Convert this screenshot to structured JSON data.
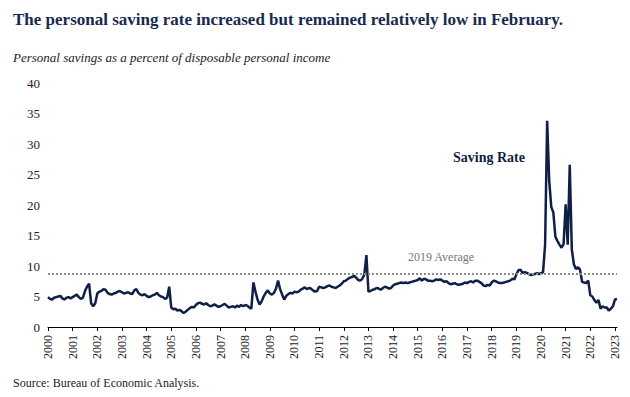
{
  "chart_data": {
    "type": "line",
    "title": "The personal saving rate increased but remained relatively low in February.",
    "subtitle": "Personal savings as a percent of disposable personal income",
    "source": "Source: Bureau of Economic Analysis.",
    "categories": [
      "2000",
      null,
      null,
      null,
      null,
      null,
      null,
      null,
      null,
      null,
      null,
      null,
      "2001",
      null,
      null,
      null,
      null,
      null,
      null,
      null,
      null,
      null,
      null,
      null,
      "2002",
      null,
      null,
      null,
      null,
      null,
      null,
      null,
      null,
      null,
      null,
      null,
      "2003",
      null,
      null,
      null,
      null,
      null,
      null,
      null,
      null,
      null,
      null,
      null,
      "2004",
      null,
      null,
      null,
      null,
      null,
      null,
      null,
      null,
      null,
      null,
      null,
      "2005",
      null,
      null,
      null,
      null,
      null,
      null,
      null,
      null,
      null,
      null,
      null,
      "2006",
      null,
      null,
      null,
      null,
      null,
      null,
      null,
      null,
      null,
      null,
      null,
      "2007",
      null,
      null,
      null,
      null,
      null,
      null,
      null,
      null,
      null,
      null,
      null,
      "2008",
      null,
      null,
      null,
      null,
      null,
      null,
      null,
      null,
      null,
      null,
      null,
      "2009",
      null,
      null,
      null,
      null,
      null,
      null,
      null,
      null,
      null,
      null,
      null,
      "2010",
      null,
      null,
      null,
      null,
      null,
      null,
      null,
      null,
      null,
      null,
      null,
      "2011",
      null,
      null,
      null,
      null,
      null,
      null,
      null,
      null,
      null,
      null,
      null,
      "2012",
      null,
      null,
      null,
      null,
      null,
      null,
      null,
      null,
      null,
      null,
      null,
      "2013",
      null,
      null,
      null,
      null,
      null,
      null,
      null,
      null,
      null,
      null,
      null,
      "2014",
      null,
      null,
      null,
      null,
      null,
      null,
      null,
      null,
      null,
      null,
      null,
      "2015",
      null,
      null,
      null,
      null,
      null,
      null,
      null,
      null,
      null,
      null,
      null,
      "2016",
      null,
      null,
      null,
      null,
      null,
      null,
      null,
      null,
      null,
      null,
      null,
      "2017",
      null,
      null,
      null,
      null,
      null,
      null,
      null,
      null,
      null,
      null,
      null,
      "2018",
      null,
      null,
      null,
      null,
      null,
      null,
      null,
      null,
      null,
      null,
      null,
      "2019",
      null,
      null,
      null,
      null,
      null,
      null,
      null,
      null,
      null,
      null,
      null,
      "2020",
      null,
      null,
      null,
      null,
      null,
      null,
      null,
      null,
      null,
      null,
      null,
      "2021",
      null,
      null,
      null,
      null,
      null,
      null,
      null,
      null,
      null,
      null,
      null,
      "2022",
      null,
      null,
      null,
      null,
      null,
      null,
      null,
      null,
      null,
      null,
      null,
      "2023",
      null
    ],
    "series": [
      {
        "name": "Saving Rate",
        "color": "#0f1f45",
        "values": [
          4.9,
          4.6,
          4.5,
          4.8,
          4.9,
          5.0,
          5.1,
          4.7,
          4.5,
          4.8,
          4.9,
          4.7,
          4.9,
          5.1,
          5.3,
          4.9,
          4.6,
          4.8,
          5.9,
          6.6,
          7.1,
          3.9,
          3.4,
          3.9,
          5.5,
          5.8,
          5.9,
          6.2,
          6.1,
          5.6,
          5.4,
          5.3,
          5.5,
          5.6,
          5.8,
          5.9,
          5.7,
          5.5,
          5.6,
          5.7,
          5.5,
          5.4,
          6.0,
          6.2,
          5.6,
          5.3,
          5.2,
          5.4,
          5.1,
          4.9,
          5.0,
          5.2,
          5.3,
          5.6,
          5.2,
          5.0,
          4.9,
          4.6,
          4.8,
          6.6,
          3.2,
          2.9,
          3.0,
          2.7,
          2.8,
          2.6,
          2.3,
          2.5,
          2.8,
          3.1,
          3.3,
          3.2,
          3.6,
          3.9,
          4.0,
          3.8,
          3.7,
          3.9,
          3.6,
          3.4,
          3.5,
          3.7,
          3.5,
          3.3,
          3.4,
          3.6,
          3.8,
          3.5,
          3.2,
          3.3,
          3.4,
          3.2,
          3.5,
          3.3,
          3.6,
          3.4,
          3.6,
          3.5,
          3.2,
          3.0,
          7.3,
          5.8,
          4.5,
          3.7,
          4.2,
          5.0,
          5.6,
          6.0,
          5.5,
          5.3,
          5.6,
          6.3,
          7.6,
          6.2,
          5.3,
          4.5,
          5.1,
          5.4,
          5.6,
          5.5,
          5.8,
          5.7,
          5.8,
          6.1,
          6.3,
          6.5,
          6.2,
          6.4,
          6.3,
          6.0,
          5.8,
          5.9,
          6.6,
          6.5,
          6.4,
          6.5,
          6.7,
          6.8,
          6.6,
          6.5,
          6.4,
          6.6,
          6.8,
          7.1,
          7.5,
          7.6,
          7.9,
          8.1,
          8.2,
          8.4,
          8.1,
          7.7,
          7.6,
          7.9,
          8.6,
          11.8,
          5.8,
          5.9,
          6.1,
          6.2,
          6.4,
          6.3,
          6.1,
          6.4,
          6.6,
          6.5,
          6.3,
          6.4,
          6.8,
          7.0,
          7.1,
          7.2,
          7.3,
          7.2,
          7.3,
          7.2,
          7.3,
          7.4,
          7.5,
          7.6,
          7.7,
          8.0,
          7.6,
          7.9,
          7.8,
          7.6,
          7.6,
          7.5,
          7.6,
          7.8,
          7.7,
          7.8,
          7.6,
          7.4,
          7.5,
          7.2,
          7.0,
          7.1,
          7.2,
          7.0,
          6.9,
          7.0,
          7.1,
          7.3,
          7.2,
          7.4,
          7.5,
          7.3,
          7.6,
          7.6,
          7.4,
          7.2,
          6.8,
          6.7,
          6.9,
          6.8,
          7.3,
          7.6,
          7.5,
          7.3,
          7.2,
          7.2,
          7.3,
          7.4,
          7.5,
          7.6,
          7.9,
          7.8,
          8.6,
          9.3,
          9.4,
          8.9,
          9.0,
          8.9,
          8.7,
          8.5,
          8.6,
          8.7,
          8.8,
          8.7,
          8.8,
          9.0,
          13.5,
          33.8,
          24.0,
          19.7,
          18.8,
          14.8,
          14.1,
          13.5,
          13.0,
          13.6,
          20.1,
          13.5,
          26.6,
          12.7,
          10.3,
          9.5,
          9.8,
          9.4,
          7.4,
          7.3,
          7.2,
          7.6,
          5.2,
          5.0,
          4.4,
          4.0,
          4.4,
          3.0,
          3.4,
          3.2,
          3.2,
          2.7,
          3.0,
          3.4,
          4.5,
          4.6
        ]
      }
    ],
    "reference_line": {
      "value": 8.8,
      "label": "2019 Average",
      "line_style": "dotted"
    },
    "ylim": [
      0,
      40
    ],
    "yticks": [
      0,
      5,
      10,
      15,
      20,
      25,
      30,
      35,
      40
    ],
    "grid": false
  }
}
